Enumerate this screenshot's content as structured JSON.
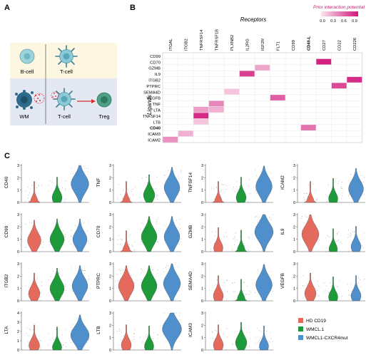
{
  "panels": {
    "A": {
      "letter": "A",
      "top": {
        "labels": [
          "B-cell",
          "T-cell"
        ]
      },
      "bottom": {
        "labels": [
          "WM",
          "T-cell",
          "Treg"
        ]
      },
      "colors": {
        "top_bg": "#fdf6e1",
        "bottom_bg": "#e3e8f3",
        "bcell": "#9fd3dc",
        "tcell": "#8cc9d6",
        "treg": "#4f9e86",
        "wm": "#2d6b8a",
        "arrow": "#d32f2f"
      }
    },
    "B": {
      "letter": "B",
      "receptors_title": "Receptors",
      "ligands_title": "Ligands",
      "legend_title": "Prior interaction potential",
      "legend_ticks": [
        "0.0",
        "0.3",
        "0.6",
        "0.9"
      ],
      "receptors": [
        "ITGAL",
        "ITGB2",
        "TNFRSF14",
        "TNFRSF1B",
        "PLXNB2",
        "IL2RG",
        "IGF2R",
        "FLT1",
        "CD99",
        "CD40-L",
        "CD27",
        "CD22",
        "CD226"
      ],
      "bold_receptor": "CD40-L",
      "ligands": [
        "CD99",
        "CD70",
        "GZMB",
        "IL9",
        "ITGB2",
        "PTPRC",
        "SEMA4D",
        "VEGFB",
        "TNF",
        "LTA",
        "TNFSF14",
        "LTB",
        "CD40",
        "ICAM3",
        "ICAM2"
      ],
      "bold_ligand": "CD40",
      "color_low": "#fbe3ee",
      "color_high": "#d1177a",
      "cells": [
        {
          "ligand": "CD70",
          "receptor": "CD27",
          "value": 0.95
        },
        {
          "ligand": "GZMB",
          "receptor": "IGF2R",
          "value": 0.3
        },
        {
          "ligand": "IL9",
          "receptor": "IL2RG",
          "value": 0.8
        },
        {
          "ligand": "ITGB2",
          "receptor": "CD226",
          "value": 0.9
        },
        {
          "ligand": "PTPRC",
          "receptor": "CD22",
          "value": 0.75
        },
        {
          "ligand": "SEMA4D",
          "receptor": "PLXNB2",
          "value": 0.15
        },
        {
          "ligand": "VEGFB",
          "receptor": "FLT1",
          "value": 0.65
        },
        {
          "ligand": "TNF",
          "receptor": "TNFRSF1B",
          "value": 0.45
        },
        {
          "ligand": "LTA",
          "receptor": "TNFRSF14",
          "value": 0.35
        },
        {
          "ligand": "LTA",
          "receptor": "TNFRSF1B",
          "value": 0.25
        },
        {
          "ligand": "TNFSF14",
          "receptor": "TNFRSF14",
          "value": 0.9
        },
        {
          "ligand": "LTB",
          "receptor": "TNFRSF14",
          "value": 0.15
        },
        {
          "ligand": "CD40",
          "receptor": "CD40-L",
          "value": 0.55
        },
        {
          "ligand": "ICAM3",
          "receptor": "ITGB2",
          "value": 0.25
        },
        {
          "ligand": "ICAM2",
          "receptor": "ITGAL",
          "value": 0.4
        }
      ]
    },
    "C": {
      "letter": "C",
      "ylim_default": [
        0,
        3
      ],
      "genes": [
        {
          "name": "CD40",
          "ymax": 3,
          "medians": [
            0.05,
            0.4,
            1.5
          ]
        },
        {
          "name": "TNF",
          "ymax": 3,
          "medians": [
            0.05,
            0.6,
            1.2
          ]
        },
        {
          "name": "TNFSF14",
          "ymax": 3,
          "medians": [
            0.05,
            0.4,
            1.3
          ]
        },
        {
          "name": "ICAM2",
          "ymax": 3,
          "medians": [
            0.05,
            0.3,
            1.1
          ]
        },
        {
          "name": "CD99",
          "ymax": 3,
          "medians": [
            0.9,
            1.0,
            1.0
          ]
        },
        {
          "name": "CD70",
          "ymax": 3,
          "medians": [
            0.05,
            1.2,
            1.2
          ]
        },
        {
          "name": "GZMB",
          "ymax": 3,
          "medians": [
            0.3,
            0.1,
            1.6
          ]
        },
        {
          "name": "IL9",
          "ymax": 3,
          "medians": [
            1.4,
            0.2,
            0.4
          ]
        },
        {
          "name": "ITGB2",
          "ymax": 3,
          "medians": [
            0.6,
            1.0,
            1.2
          ]
        },
        {
          "name": "PTPRC",
          "ymax": 3,
          "medians": [
            1.2,
            1.2,
            1.4
          ]
        },
        {
          "name": "SEMA4D",
          "ymax": 3,
          "medians": [
            0.4,
            0.1,
            1.3
          ]
        },
        {
          "name": "VEGFB",
          "ymax": 3,
          "medians": [
            0.6,
            0.3,
            0.4
          ]
        },
        {
          "name": "LTA",
          "ymax": 4,
          "medians": [
            0.5,
            0.3,
            1.6
          ]
        },
        {
          "name": "LTB",
          "ymax": 3,
          "medians": [
            0.4,
            0.3,
            1.7
          ]
        },
        {
          "name": "ICAM3",
          "ymax": 3,
          "medians": [
            0.4,
            0.6,
            0.3
          ]
        }
      ],
      "legend": [
        {
          "label": "HD CD19",
          "color": "#e56a5e"
        },
        {
          "label": "WMCL.1",
          "color": "#1e9a3a"
        },
        {
          "label": "WMCL1-CXCR4mut",
          "color": "#4e8fcc"
        }
      ]
    }
  }
}
